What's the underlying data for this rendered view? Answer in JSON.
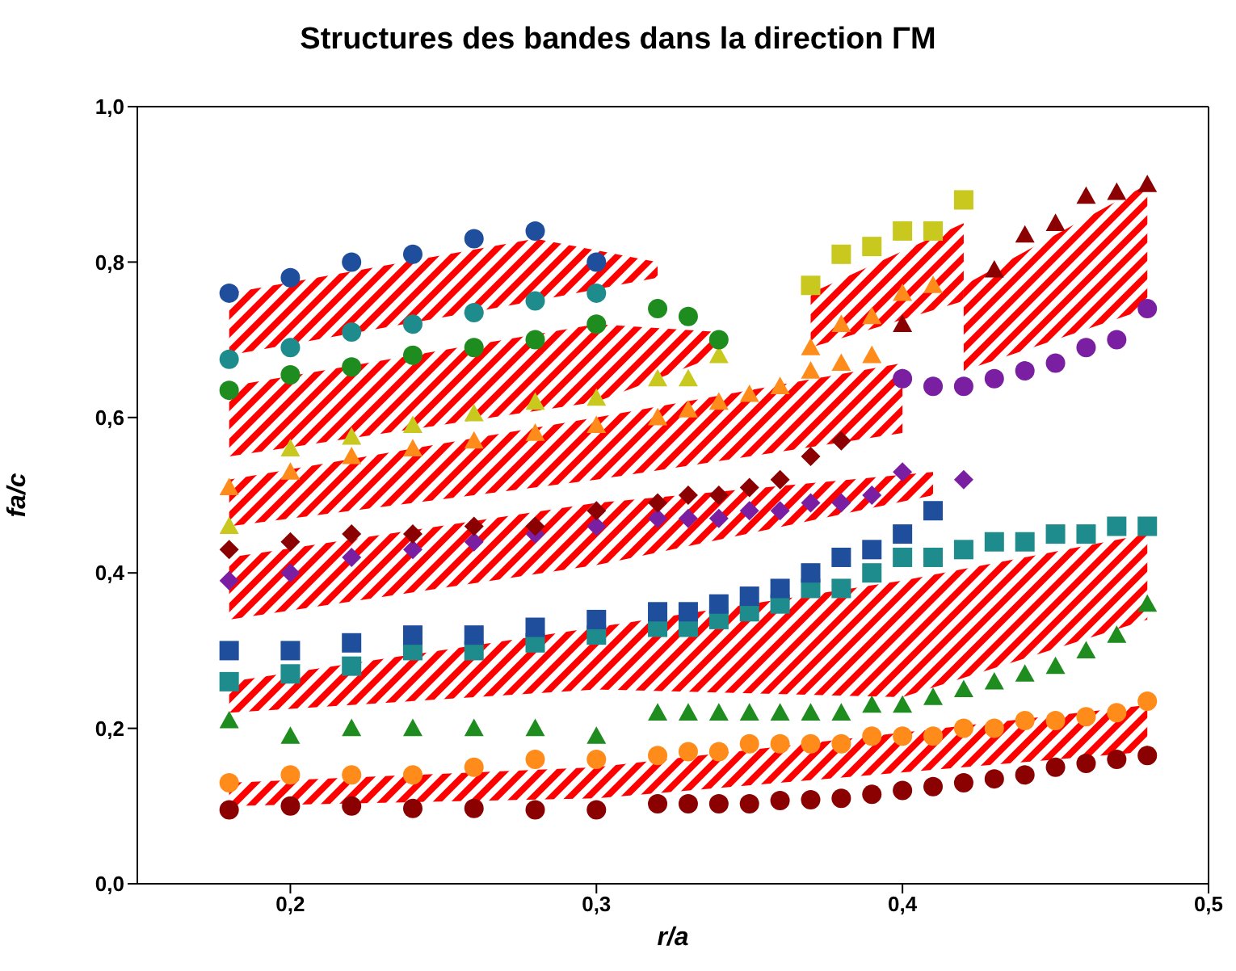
{
  "chart_data": {
    "type": "scatter",
    "title": "Structures des bandes dans la direction ΓM",
    "xlabel": "r/a",
    "ylabel": "fa/c",
    "xlim": [
      0.15,
      0.5
    ],
    "xticks": [
      {
        "value": 0.2,
        "label": "0,2"
      },
      {
        "value": 0.3,
        "label": "0,3"
      },
      {
        "value": 0.4,
        "label": "0,4"
      },
      {
        "value": 0.5,
        "label": "0,5"
      }
    ],
    "ylim": [
      0,
      1
    ],
    "yticks": [
      {
        "value": 0,
        "label": "0,0"
      },
      {
        "value": 0.2,
        "label": "0,2"
      },
      {
        "value": 0.4,
        "label": "0,4"
      },
      {
        "value": 0.6,
        "label": "0,6"
      },
      {
        "value": 0.8,
        "label": "0,8"
      },
      {
        "value": 1,
        "label": "1,0"
      }
    ],
    "grid": false,
    "legend": false,
    "series": [
      {
        "marker": "circle",
        "color": "#8b0000",
        "x": [
          0.18,
          0.2,
          0.22,
          0.24,
          0.26,
          0.28,
          0.3,
          0.32,
          0.33,
          0.34,
          0.35,
          0.36,
          0.37,
          0.38,
          0.39,
          0.4,
          0.41,
          0.42,
          0.43,
          0.44,
          0.45,
          0.46,
          0.47,
          0.48
        ],
        "values": [
          0.095,
          0.1,
          0.1,
          0.097,
          0.097,
          0.095,
          0.095,
          0.103,
          0.103,
          0.103,
          0.103,
          0.107,
          0.108,
          0.11,
          0.115,
          0.12,
          0.125,
          0.13,
          0.135,
          0.14,
          0.15,
          0.155,
          0.16,
          0.165
        ]
      },
      {
        "marker": "circle",
        "color": "#ff8c1a",
        "x": [
          0.18,
          0.2,
          0.22,
          0.24,
          0.26,
          0.28,
          0.3,
          0.32,
          0.33,
          0.34,
          0.35,
          0.36,
          0.37,
          0.38,
          0.39,
          0.4,
          0.41,
          0.42,
          0.43,
          0.44,
          0.45,
          0.46,
          0.47,
          0.48
        ],
        "values": [
          0.13,
          0.14,
          0.14,
          0.14,
          0.15,
          0.16,
          0.16,
          0.165,
          0.17,
          0.17,
          0.18,
          0.18,
          0.18,
          0.18,
          0.19,
          0.19,
          0.19,
          0.2,
          0.2,
          0.21,
          0.21,
          0.215,
          0.22,
          0.235
        ]
      },
      {
        "marker": "triangle",
        "color": "#1e8c1e",
        "x": [
          0.18,
          0.2,
          0.22,
          0.24,
          0.26,
          0.28,
          0.3,
          0.32,
          0.33,
          0.34,
          0.35,
          0.36,
          0.37,
          0.38,
          0.39,
          0.4,
          0.41,
          0.42,
          0.43,
          0.44,
          0.45,
          0.46,
          0.47,
          0.48
        ],
        "values": [
          0.21,
          0.19,
          0.2,
          0.2,
          0.2,
          0.2,
          0.19,
          0.22,
          0.22,
          0.22,
          0.22,
          0.22,
          0.22,
          0.22,
          0.23,
          0.23,
          0.24,
          0.25,
          0.26,
          0.27,
          0.28,
          0.3,
          0.32,
          0.36
        ]
      },
      {
        "marker": "square",
        "color": "#1e8c8c",
        "x": [
          0.18,
          0.2,
          0.22,
          0.24,
          0.26,
          0.28,
          0.3,
          0.32,
          0.33,
          0.34,
          0.35,
          0.36,
          0.37,
          0.38,
          0.39,
          0.4,
          0.41,
          0.42,
          0.43,
          0.44,
          0.45,
          0.46,
          0.47,
          0.48
        ],
        "values": [
          0.26,
          0.27,
          0.28,
          0.3,
          0.3,
          0.31,
          0.32,
          0.33,
          0.33,
          0.34,
          0.35,
          0.36,
          0.38,
          0.38,
          0.4,
          0.42,
          0.42,
          0.43,
          0.44,
          0.44,
          0.45,
          0.45,
          0.46,
          0.46
        ]
      },
      {
        "marker": "square",
        "color": "#1f4e9c",
        "x": [
          0.18,
          0.2,
          0.22,
          0.24,
          0.26,
          0.28,
          0.3,
          0.32,
          0.33,
          0.34,
          0.35,
          0.36,
          0.37,
          0.38,
          0.39,
          0.4,
          0.41
        ],
        "values": [
          0.3,
          0.3,
          0.31,
          0.32,
          0.32,
          0.33,
          0.34,
          0.35,
          0.35,
          0.36,
          0.37,
          0.38,
          0.4,
          0.42,
          0.43,
          0.45,
          0.48
        ]
      },
      {
        "marker": "diamond",
        "color": "#7b1fa2",
        "x": [
          0.18,
          0.2,
          0.22,
          0.24,
          0.26,
          0.28,
          0.3,
          0.32,
          0.33,
          0.34,
          0.35,
          0.36,
          0.37,
          0.38,
          0.39,
          0.4,
          0.42
        ],
        "values": [
          0.39,
          0.4,
          0.42,
          0.43,
          0.44,
          0.45,
          0.46,
          0.47,
          0.47,
          0.47,
          0.48,
          0.48,
          0.49,
          0.49,
          0.5,
          0.53,
          0.52
        ]
      },
      {
        "marker": "diamond",
        "color": "#8b0000",
        "x": [
          0.18,
          0.2,
          0.22,
          0.24,
          0.26,
          0.28,
          0.3,
          0.32,
          0.33,
          0.34,
          0.35,
          0.36,
          0.37,
          0.38
        ],
        "values": [
          0.43,
          0.44,
          0.45,
          0.45,
          0.46,
          0.46,
          0.48,
          0.49,
          0.5,
          0.5,
          0.51,
          0.52,
          0.55,
          0.57
        ]
      },
      {
        "marker": "triangle",
        "color": "#ff8c1a",
        "x": [
          0.18,
          0.2,
          0.22,
          0.24,
          0.26,
          0.28,
          0.3,
          0.32,
          0.33,
          0.34,
          0.35,
          0.36,
          0.37,
          0.38,
          0.39
        ],
        "values": [
          0.51,
          0.53,
          0.55,
          0.56,
          0.57,
          0.58,
          0.59,
          0.6,
          0.61,
          0.62,
          0.63,
          0.64,
          0.66,
          0.67,
          0.68
        ]
      },
      {
        "marker": "triangle",
        "color": "#c8c81e",
        "x": [
          0.18,
          0.2,
          0.22,
          0.24,
          0.26,
          0.28,
          0.3,
          0.32,
          0.33,
          0.34
        ],
        "values": [
          0.46,
          0.56,
          0.575,
          0.59,
          0.605,
          0.62,
          0.625,
          0.65,
          0.65,
          0.68
        ]
      },
      {
        "marker": "circle",
        "color": "#1e8c1e",
        "x": [
          0.18,
          0.2,
          0.22,
          0.24,
          0.26,
          0.28,
          0.3,
          0.32,
          0.33,
          0.34
        ],
        "values": [
          0.635,
          0.655,
          0.665,
          0.68,
          0.69,
          0.7,
          0.72,
          0.74,
          0.73,
          0.7
        ]
      },
      {
        "marker": "circle",
        "color": "#1e8c8c",
        "x": [
          0.18,
          0.2,
          0.22,
          0.24,
          0.26,
          0.28,
          0.3
        ],
        "values": [
          0.675,
          0.69,
          0.71,
          0.72,
          0.735,
          0.75,
          0.76
        ]
      },
      {
        "marker": "circle",
        "color": "#1f4e9c",
        "x": [
          0.18,
          0.2,
          0.22,
          0.24,
          0.26,
          0.28,
          0.3
        ],
        "values": [
          0.76,
          0.78,
          0.8,
          0.81,
          0.83,
          0.84,
          0.8
        ]
      },
      {
        "marker": "square",
        "color": "#c8c81e",
        "x": [
          0.37,
          0.38,
          0.39,
          0.4,
          0.41,
          0.42
        ],
        "values": [
          0.77,
          0.81,
          0.82,
          0.84,
          0.84,
          0.88
        ]
      },
      {
        "marker": "triangle",
        "color": "#ff8c1a",
        "x": [
          0.37,
          0.38,
          0.39,
          0.4,
          0.41
        ],
        "values": [
          0.69,
          0.72,
          0.73,
          0.76,
          0.77
        ]
      },
      {
        "marker": "triangle",
        "color": "#8b0000",
        "x": [
          0.4,
          0.43,
          0.44,
          0.45,
          0.46,
          0.47,
          0.48
        ],
        "values": [
          0.72,
          0.79,
          0.835,
          0.85,
          0.885,
          0.89,
          0.9
        ]
      },
      {
        "marker": "circle",
        "color": "#7b1fa2",
        "x": [
          0.4,
          0.41,
          0.42,
          0.43,
          0.44,
          0.45,
          0.46,
          0.47,
          0.48
        ],
        "values": [
          0.65,
          0.64,
          0.64,
          0.65,
          0.66,
          0.67,
          0.69,
          0.7,
          0.74
        ]
      },
      {
        "type": "line",
        "color": "#ff0000",
        "x": [
          0.18,
          0.28,
          0.32
        ],
        "values": [
          null,
          null,
          null
        ],
        "lower": [
          0.68,
          0.75,
          0.78
        ],
        "upper": [
          0.76,
          0.83,
          0.8
        ]
      },
      {
        "type": "line",
        "color": "#ff0000",
        "x": [
          0.18,
          0.3,
          0.34
        ],
        "values": [
          null,
          null,
          null
        ],
        "lower": [
          0.55,
          0.62,
          0.68
        ],
        "upper": [
          0.64,
          0.72,
          0.71
        ]
      },
      {
        "type": "line",
        "color": "#ff0000",
        "x": [
          0.18,
          0.3,
          0.4
        ],
        "values": [
          null,
          null,
          null
        ],
        "lower": [
          0.46,
          0.52,
          0.58
        ],
        "upper": [
          0.52,
          0.6,
          0.67
        ]
      },
      {
        "type": "line",
        "color": "#ff0000",
        "x": [
          0.18,
          0.3,
          0.41
        ],
        "values": [
          null,
          null,
          null
        ],
        "lower": [
          0.34,
          0.41,
          0.5
        ],
        "upper": [
          0.42,
          0.49,
          0.53
        ]
      },
      {
        "type": "line",
        "color": "#ff0000",
        "x": [
          0.18,
          0.3,
          0.4,
          0.48
        ],
        "values": [
          null,
          null,
          null,
          null
        ],
        "lower": [
          0.22,
          0.25,
          0.24,
          0.34
        ],
        "upper": [
          0.26,
          0.33,
          0.39,
          0.45
        ]
      },
      {
        "type": "line",
        "color": "#ff0000",
        "x": [
          0.18,
          0.3,
          0.48
        ],
        "values": [
          null,
          null,
          null
        ],
        "lower": [
          0.1,
          0.11,
          0.17
        ],
        "upper": [
          0.13,
          0.15,
          0.23
        ]
      },
      {
        "type": "line",
        "color": "#ff0000",
        "x": [
          0.37,
          0.42
        ],
        "values": [
          null,
          null
        ],
        "lower": [
          0.69,
          0.75
        ],
        "upper": [
          0.76,
          0.85
        ]
      },
      {
        "type": "line",
        "color": "#ff0000",
        "x": [
          0.42,
          0.48
        ],
        "values": [
          null,
          null
        ],
        "lower": [
          0.66,
          0.74
        ],
        "upper": [
          0.77,
          0.9
        ]
      }
    ]
  }
}
